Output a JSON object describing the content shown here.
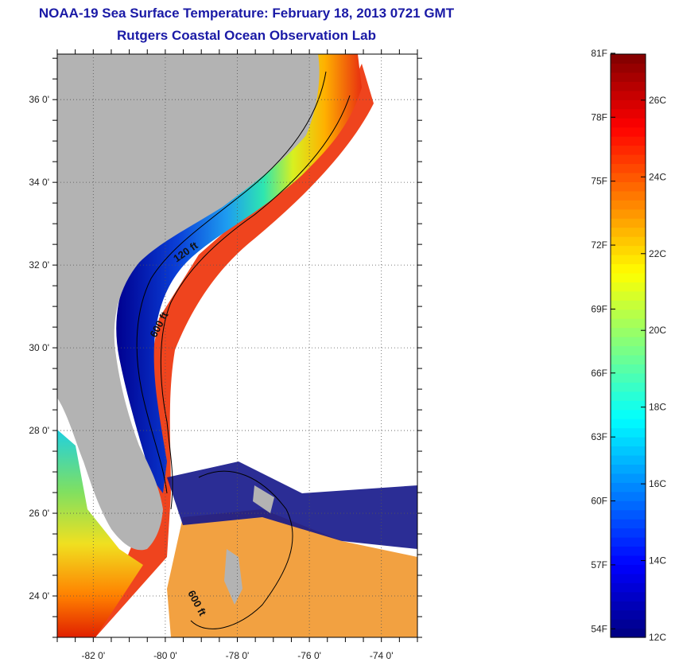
{
  "title": "NOAA-19 Sea Surface Temperature:  February 18, 2013 0721 GMT",
  "subtitle": "Rutgers Coastal Ocean Observation Lab",
  "map": {
    "lat_labels": [
      "36 0'",
      "34 0'",
      "32 0'",
      "30 0'",
      "28 0'",
      "26 0'",
      "24 0'"
    ],
    "lat_values": [
      36,
      34,
      32,
      30,
      28,
      26,
      24
    ],
    "lon_labels": [
      "-82 0'",
      "-80 0'",
      "-78 0'",
      "-76 0'",
      "-74 0'"
    ],
    "lon_values": [
      -82,
      -80,
      -78,
      -76,
      -74
    ],
    "lat_range": [
      23,
      37.1
    ],
    "lon_range": [
      -83,
      -73
    ],
    "contour_labels": [
      "120 ft",
      "600 ft",
      "600 ft"
    ],
    "grid": true,
    "colors": {
      "land": "#b3b3b3",
      "cloud": "#ffffff",
      "coast": "#000000"
    }
  },
  "colorbar": {
    "fahrenheit_labels": [
      "81F",
      "78F",
      "75F",
      "72F",
      "69F",
      "66F",
      "63F",
      "60F",
      "57F",
      "54F"
    ],
    "fahrenheit_values": [
      81,
      78,
      75,
      72,
      69,
      66,
      63,
      60,
      57,
      54
    ],
    "celsius_labels": [
      "26C",
      "24C",
      "22C",
      "20C",
      "18C",
      "16C",
      "14C",
      "12C"
    ],
    "celsius_values": [
      26,
      24,
      22,
      20,
      18,
      16,
      14,
      12
    ],
    "range_c": [
      12,
      27.2
    ],
    "colormap": "jet"
  }
}
